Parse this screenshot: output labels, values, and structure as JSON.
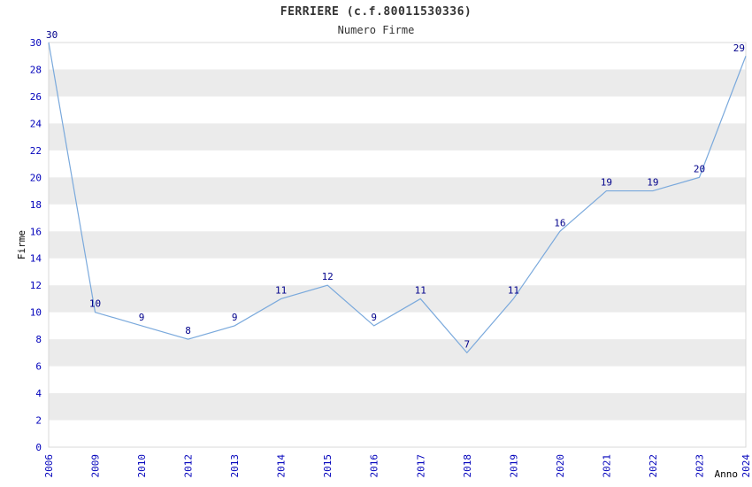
{
  "chart_data": {
    "type": "line",
    "title": "FERRIERE (c.f.80011530336)",
    "subtitle": "Numero Firme",
    "xlabel": "Anno",
    "ylabel": "Firme",
    "categories": [
      "2006",
      "2009",
      "2010",
      "2012",
      "2013",
      "2014",
      "2015",
      "2016",
      "2017",
      "2018",
      "2019",
      "2020",
      "2021",
      "2022",
      "2023",
      "2024"
    ],
    "values": [
      30,
      10,
      9,
      8,
      9,
      11,
      12,
      9,
      11,
      7,
      11,
      16,
      19,
      19,
      20,
      29
    ],
    "ylim": [
      0,
      30
    ],
    "ytick_step": 2,
    "grid": "alternating-horizontal-bands",
    "legend": "none",
    "colors": {
      "line": "#7aa9dc",
      "band": "#ebebeb",
      "tick_label": "#0000bb",
      "data_label": "#00008b",
      "axis_title": "#000000",
      "title": "#333333",
      "plot_border": "#d9d9d9"
    }
  }
}
